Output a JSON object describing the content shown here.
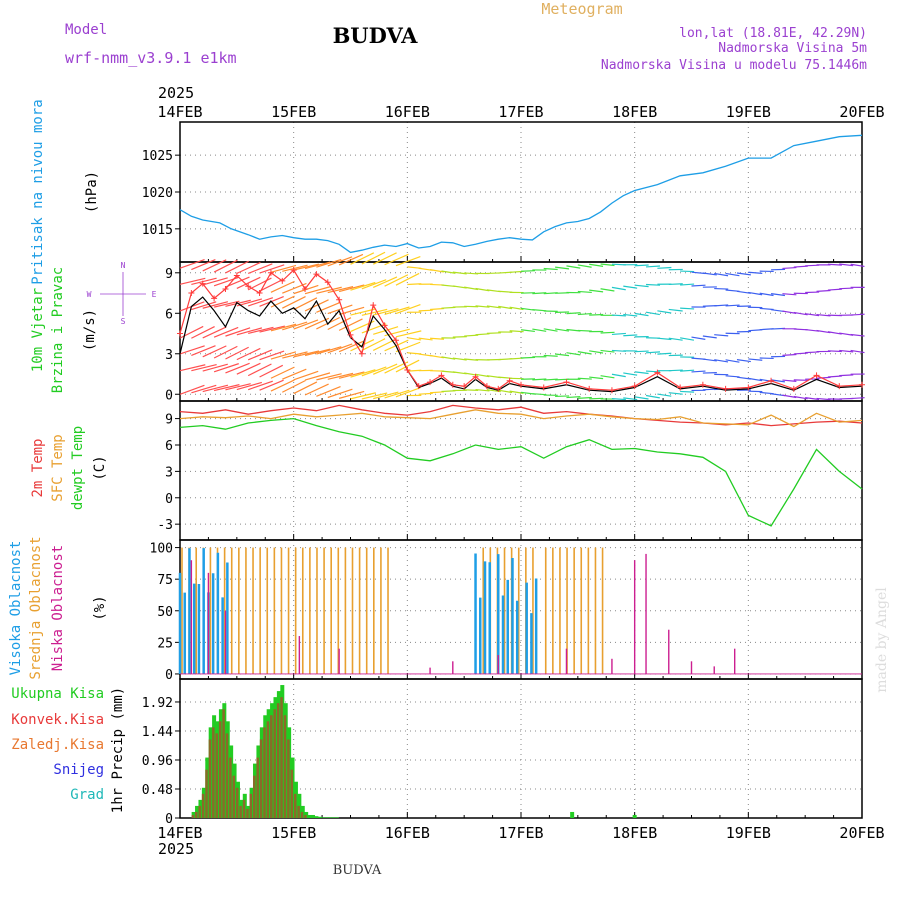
{
  "header": {
    "model_label": "Model",
    "model_name": "wrf-nmm_v3.9.1 e1km",
    "station": "BUDVA",
    "product": "Meteogram",
    "coords": "lon,lat (18.81E, 42.29N)",
    "elevation": "Nadmorska Visina 5m",
    "model_elevation": "Nadmorska Visina u modelu 75.1446m",
    "footer_station": "BUDVA",
    "credit": "made by Angel"
  },
  "time_axis": {
    "year": "2025",
    "ticks": [
      "14FEB",
      "15FEB",
      "16FEB",
      "17FEB",
      "18FEB",
      "19FEB",
      "20FEB"
    ]
  },
  "colors": {
    "pressure": "#1e9ee6",
    "wind_speed": "#000000",
    "gust": "#ff3b3b",
    "t2m": "#e83a3a",
    "tsfc": "#e8a030",
    "dewpt": "#22cc22",
    "high_cloud": "#1e9ee6",
    "mid_cloud": "#e8a030",
    "low_cloud": "#cc1e90",
    "total_precip": "#22cc22",
    "conv_precip": "#e83a3a",
    "frozen_precip": "#e87830",
    "snow": "#3030e0",
    "hail": "#20b8b8"
  },
  "chart_data": [
    {
      "type": "line",
      "panel": "pressure",
      "ylabel_1": "Pritisak na nivou mora",
      "ylabel_unit": "(hPa)",
      "yticks": [
        "1015",
        "1020",
        "1025"
      ],
      "ylim": [
        1010.5,
        1029.5
      ],
      "x_days": [
        0,
        0.1,
        0.2,
        0.35,
        0.45,
        0.6,
        0.7,
        0.8,
        0.9,
        1.0,
        1.1,
        1.2,
        1.3,
        1.4,
        1.5,
        1.6,
        1.7,
        1.8,
        1.9,
        2.0,
        2.1,
        2.2,
        2.3,
        2.4,
        2.5,
        2.6,
        2.7,
        2.8,
        2.9,
        3.0,
        3.1,
        3.2,
        3.3,
        3.4,
        3.5,
        3.6,
        3.7,
        3.8,
        3.9,
        4.0,
        4.2,
        4.4,
        4.6,
        4.8,
        5.0,
        5.2,
        5.4,
        5.6,
        5.8,
        6.0
      ],
      "values": [
        1017.6,
        1016.7,
        1016.2,
        1015.8,
        1015.0,
        1014.2,
        1013.6,
        1013.9,
        1014.1,
        1013.8,
        1013.6,
        1013.6,
        1013.4,
        1012.9,
        1011.8,
        1012.1,
        1012.5,
        1012.8,
        1012.6,
        1013.0,
        1012.4,
        1012.6,
        1013.2,
        1013.1,
        1012.6,
        1012.9,
        1013.3,
        1013.6,
        1013.8,
        1013.6,
        1013.5,
        1014.6,
        1015.3,
        1015.8,
        1016.0,
        1016.4,
        1017.3,
        1018.5,
        1019.5,
        1020.2,
        1021.0,
        1022.2,
        1022.6,
        1023.5,
        1024.6,
        1024.6,
        1026.3,
        1026.9,
        1027.5,
        1027.7
      ]
    },
    {
      "type": "line",
      "panel": "wind",
      "ylabel_1": "10m Vjetar",
      "ylabel_2": "Brzina i Pravac",
      "ylabel_unit": "(m/s)",
      "compass": [
        "N",
        "W",
        "E",
        "S"
      ],
      "yticks": [
        "0",
        "3",
        "6",
        "9"
      ],
      "ylim": [
        -0.5,
        9.8
      ],
      "x_days": [
        0,
        0.1,
        0.2,
        0.3,
        0.4,
        0.5,
        0.6,
        0.7,
        0.8,
        0.9,
        1.0,
        1.1,
        1.2,
        1.3,
        1.4,
        1.5,
        1.6,
        1.7,
        1.8,
        1.9,
        2.0,
        2.1,
        2.2,
        2.3,
        2.4,
        2.5,
        2.6,
        2.7,
        2.8,
        2.9,
        3.0,
        3.2,
        3.4,
        3.6,
        3.8,
        4.0,
        4.2,
        4.4,
        4.6,
        4.8,
        5.0,
        5.2,
        5.4,
        5.6,
        5.8,
        6.0
      ],
      "speed": [
        3.0,
        6.5,
        7.2,
        6.2,
        5.0,
        6.8,
        6.2,
        5.8,
        6.9,
        6.0,
        6.4,
        5.6,
        6.9,
        5.2,
        6.2,
        4.2,
        3.5,
        5.8,
        4.8,
        3.6,
        1.8,
        0.5,
        0.8,
        1.2,
        0.6,
        0.4,
        1.1,
        0.5,
        0.3,
        0.8,
        0.6,
        0.4,
        0.7,
        0.3,
        0.2,
        0.5,
        1.3,
        0.4,
        0.6,
        0.3,
        0.4,
        0.8,
        0.3,
        1.1,
        0.5,
        0.6
      ],
      "gust": [
        4.5,
        7.5,
        8.2,
        7.1,
        7.8,
        8.8,
        8.0,
        7.5,
        9.0,
        8.4,
        9.2,
        7.8,
        8.9,
        8.3,
        7.0,
        4.4,
        3.0,
        6.6,
        5.1,
        4.0,
        1.8,
        0.6,
        0.9,
        1.4,
        0.7,
        0.6,
        1.3,
        0.6,
        0.4,
        1.0,
        0.7,
        0.5,
        0.9,
        0.4,
        0.3,
        0.6,
        1.6,
        0.5,
        0.7,
        0.4,
        0.5,
        1.0,
        0.4,
        1.4,
        0.6,
        0.7
      ]
    },
    {
      "type": "line",
      "panel": "temperature",
      "ylabel_1": "2m Temp",
      "ylabel_2": "SFC Temp",
      "ylabel_3": "dewpt Temp",
      "ylabel_unit": "(C)",
      "yticks": [
        "-3",
        "0",
        "3",
        "6",
        "9"
      ],
      "ylim": [
        -4.8,
        11.0
      ],
      "x_days": [
        0,
        0.2,
        0.4,
        0.6,
        0.8,
        1.0,
        1.2,
        1.4,
        1.6,
        1.8,
        2.0,
        2.2,
        2.4,
        2.6,
        2.8,
        3.0,
        3.2,
        3.4,
        3.6,
        3.8,
        4.0,
        4.2,
        4.4,
        4.6,
        4.8,
        5.0,
        5.2,
        5.4,
        5.6,
        5.8,
        6.0
      ],
      "t2m": [
        9.8,
        9.6,
        10.0,
        9.5,
        9.9,
        10.2,
        9.9,
        10.5,
        10.0,
        9.6,
        9.4,
        9.8,
        10.5,
        10.2,
        10.0,
        10.3,
        9.6,
        9.8,
        9.5,
        9.3,
        9.0,
        8.8,
        8.6,
        8.5,
        8.3,
        8.5,
        8.2,
        8.4,
        8.6,
        8.7,
        8.5
      ],
      "tsfc": [
        9.0,
        9.2,
        9.1,
        9.3,
        9.0,
        9.5,
        9.2,
        9.4,
        9.6,
        9.2,
        9.1,
        9.0,
        9.5,
        10.0,
        9.6,
        9.5,
        9.0,
        9.3,
        9.5,
        9.2,
        9.0,
        8.9,
        9.2,
        8.5,
        8.4,
        8.3,
        9.4,
        8.1,
        9.6,
        8.6,
        8.8
      ],
      "dewpt": [
        8.0,
        8.2,
        7.8,
        8.5,
        8.8,
        9.0,
        8.2,
        7.5,
        7.0,
        6.0,
        4.5,
        4.2,
        5.0,
        6.0,
        5.5,
        5.8,
        4.5,
        5.8,
        6.6,
        5.5,
        5.6,
        5.2,
        5.0,
        4.6,
        3.0,
        -2.0,
        -3.2,
        1.0,
        5.5,
        3.0,
        1.0
      ]
    },
    {
      "type": "bar",
      "panel": "clouds",
      "ylabel_1": "Visoka Oblacnost",
      "ylabel_2": "Srednja Oblacnost",
      "ylabel_3": "Niska Oblacnost",
      "ylabel_unit": "(%)",
      "yticks": [
        "0",
        "25",
        "50",
        "75",
        "100"
      ],
      "ylim": [
        -4,
        106
      ],
      "high_ranges": [
        [
          0.0,
          0.45,
          100
        ],
        [
          2.6,
          2.75,
          100
        ],
        [
          2.8,
          3.0,
          95
        ],
        [
          3.05,
          3.15,
          80
        ]
      ],
      "mid_ranges": [
        [
          0.0,
          1.85,
          100
        ],
        [
          2.65,
          3.1,
          100
        ],
        [
          3.2,
          3.7,
          100
        ]
      ],
      "low_spikes": [
        [
          0.1,
          90
        ],
        [
          0.25,
          80
        ],
        [
          0.4,
          50
        ],
        [
          1.05,
          30
        ],
        [
          1.4,
          20
        ],
        [
          2.2,
          5
        ],
        [
          2.4,
          10
        ],
        [
          2.8,
          15
        ],
        [
          3.4,
          20
        ],
        [
          3.8,
          12
        ],
        [
          4.0,
          90
        ],
        [
          4.1,
          95
        ],
        [
          4.3,
          35
        ],
        [
          4.5,
          10
        ],
        [
          4.7,
          6
        ],
        [
          4.88,
          20
        ]
      ]
    },
    {
      "type": "bar",
      "panel": "precip",
      "legend": [
        "Ukupna Kisa",
        "Konvek.Kisa",
        "Zaledj.Kisa",
        "Snijeg",
        "Grad"
      ],
      "ylabel_unit": "1hr Precip (mm)",
      "yticks": [
        "0",
        "0.48",
        "0.96",
        "1.44",
        "1.92"
      ],
      "ylim": [
        0,
        2.3
      ],
      "x_days": [
        0.12,
        0.15,
        0.18,
        0.21,
        0.24,
        0.27,
        0.3,
        0.33,
        0.36,
        0.39,
        0.42,
        0.45,
        0.48,
        0.51,
        0.54,
        0.57,
        0.6,
        0.63,
        0.66,
        0.69,
        0.72,
        0.75,
        0.78,
        0.81,
        0.84,
        0.87,
        0.9,
        0.93,
        0.96,
        0.99,
        1.02,
        1.05,
        1.08,
        1.11,
        1.14,
        1.17,
        1.2,
        1.23,
        1.26,
        1.29,
        1.32,
        1.35,
        1.38,
        3.45,
        4.0
      ],
      "total": [
        0.1,
        0.2,
        0.3,
        0.5,
        1.0,
        1.5,
        1.7,
        1.6,
        1.8,
        1.9,
        1.6,
        1.2,
        0.9,
        0.6,
        0.3,
        0.4,
        0.2,
        0.5,
        0.9,
        1.2,
        1.5,
        1.7,
        1.8,
        1.9,
        2.0,
        2.1,
        2.2,
        1.9,
        1.5,
        1.0,
        0.6,
        0.4,
        0.2,
        0.1,
        0.05,
        0.05,
        0.03,
        0.02,
        0.01,
        0.01,
        0.01,
        0.01,
        0.01,
        0.1,
        0.05
      ],
      "convective": [
        0.05,
        0.1,
        0.2,
        0.4,
        0.8,
        1.3,
        1.5,
        1.4,
        1.6,
        1.8,
        1.4,
        1.0,
        0.7,
        0.5,
        0.2,
        0.3,
        0.15,
        0.4,
        0.7,
        1.0,
        1.3,
        1.5,
        1.6,
        1.7,
        1.8,
        1.9,
        2.0,
        1.7,
        1.3,
        0.8,
        0.4,
        0.2,
        0.1,
        0.05,
        0,
        0,
        0,
        0,
        0,
        0,
        0,
        0,
        0,
        0,
        0
      ]
    }
  ]
}
